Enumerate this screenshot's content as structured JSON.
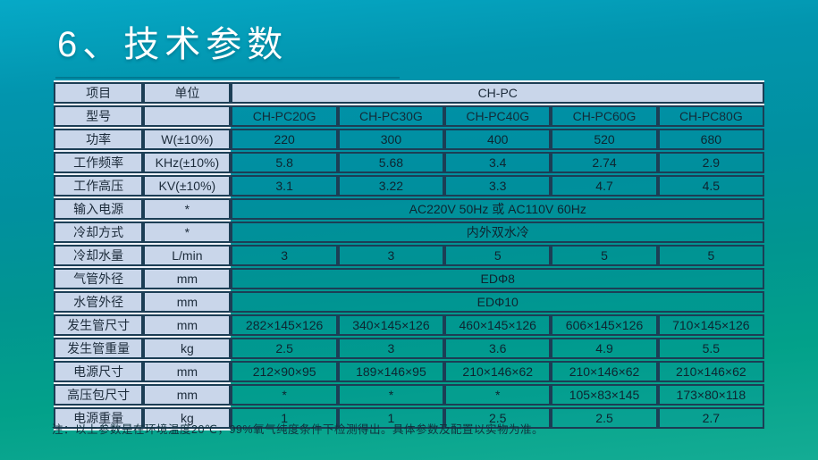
{
  "slide": {
    "title": "6、技术参数",
    "note": "注：以上参数是在环境温度20℃，99%氧气纯度条件下检测得出。具体参数及配置以实物为准。"
  },
  "table": {
    "header": {
      "item": "项目",
      "unit": "单位",
      "series": "CH-PC"
    },
    "model_row": {
      "label": "型号",
      "unit": "",
      "models": [
        "CH-PC20G",
        "CH-PC30G",
        "CH-PC40G",
        "CH-PC60G",
        "CH-PC80G"
      ]
    },
    "rows": [
      {
        "label": "功率",
        "unit": "W(±10%)",
        "values": [
          "220",
          "300",
          "400",
          "520",
          "680"
        ]
      },
      {
        "label": "工作频率",
        "unit": "KHz(±10%)",
        "values": [
          "5.8",
          "5.68",
          "3.4",
          "2.74",
          "2.9"
        ]
      },
      {
        "label": "工作高压",
        "unit": "KV(±10%)",
        "values": [
          "3.1",
          "3.22",
          "3.3",
          "4.7",
          "4.5"
        ]
      },
      {
        "label": "输入电源",
        "unit": "*",
        "merged": "AC220V 50Hz 或  AC110V 60Hz"
      },
      {
        "label": "冷却方式",
        "unit": "*",
        "merged": "内外双水冷"
      },
      {
        "label": "冷却水量",
        "unit": "L/min",
        "values": [
          "3",
          "3",
          "5",
          "5",
          "5"
        ]
      },
      {
        "label": "气管外径",
        "unit": "mm",
        "merged": "EDΦ8"
      },
      {
        "label": "水管外径",
        "unit": "mm",
        "merged": "EDΦ10"
      },
      {
        "label": "发生管尺寸",
        "unit": "mm",
        "values": [
          "282×145×126",
          "340×145×126",
          "460×145×126",
          "606×145×126",
          "710×145×126"
        ]
      },
      {
        "label": "发生管重量",
        "unit": "kg",
        "values": [
          "2.5",
          "3",
          "3.6",
          "4.9",
          "5.5"
        ]
      },
      {
        "label": "电源尺寸",
        "unit": "mm",
        "values": [
          "212×90×95",
          "189×146×95",
          "210×146×62",
          "210×146×62",
          "210×146×62"
        ]
      },
      {
        "label": "高压包尺寸",
        "unit": "mm",
        "values": [
          "*",
          "*",
          "*",
          "105×83×145",
          "173×80×118"
        ]
      },
      {
        "label": "电源重量",
        "unit": "kg",
        "values": [
          "1",
          "1",
          "2.5",
          "2.5",
          "2.7"
        ]
      }
    ]
  },
  "colors": {
    "background_top": "#06a9c7",
    "background_bottom": "#14ac94",
    "table_border": "#1c3e55",
    "label_cell_bg": "#c9d6ea",
    "label_cell_gap": "#edf1f9",
    "title_text": "#ffffff",
    "table_text": "#1c2b3a"
  }
}
